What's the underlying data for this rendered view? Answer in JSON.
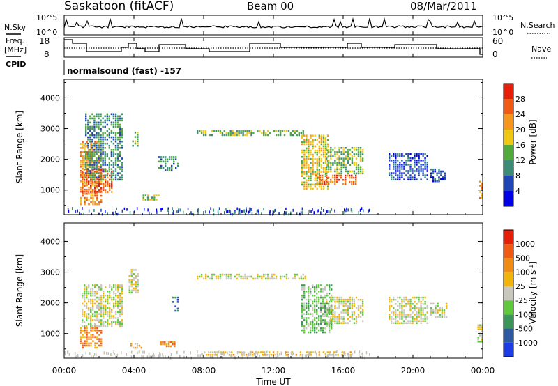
{
  "header": {
    "station": "Saskatoon (fitACF)",
    "beam": "Beam 00",
    "date": "08/Mar/2011"
  },
  "time_axis": {
    "ticks": [
      "00:00",
      "04:00",
      "08:00",
      "12:00",
      "16:00",
      "20:00",
      "00:00"
    ],
    "label": "Time UT",
    "range_hours": [
      0,
      24
    ]
  },
  "top_panels": {
    "nsky_label": "N.Sky",
    "nsky_ticks": [
      "10^5",
      "10^0"
    ],
    "nsearch_label": "N.Search",
    "nsearch_ticks": [
      "10^5",
      "10^0"
    ],
    "freq_label": "Freq.",
    "freq_unit": "[MHz]",
    "freq_ticks": [
      "18",
      "8"
    ],
    "nave_label": "Nave",
    "nave_ticks": [
      "60",
      "0"
    ],
    "cpid_label": "CPID",
    "cpid_text": "normalsound (fast) -157"
  },
  "colors": {
    "power_scale": [
      "#0000e6",
      "#1e46b4",
      "#3c8c78",
      "#50aa3c",
      "#f0c814",
      "#f5961e",
      "#f05a14",
      "#e61e0a"
    ],
    "velocity_scale": [
      "#1c3ce6",
      "#2d5aa0",
      "#3c965a",
      "#5fc83c",
      "#c8c8be",
      "#f0b40a",
      "#f08c14",
      "#f05a14",
      "#e61e0a"
    ],
    "ground_scatter": "#bebeb4"
  },
  "chart_data": [
    {
      "type": "heatmap",
      "name": "power",
      "ylabel": "Slant Range [km]",
      "yticks": [
        "4000",
        "3000",
        "2000",
        "1000"
      ],
      "ylim": [
        200,
        4600
      ],
      "xlim_hours": [
        0,
        24
      ],
      "colorbar_label": "Power [dB]",
      "colorbar_ticks": [
        "28",
        "24",
        "20",
        "16",
        "12",
        "8",
        "4"
      ],
      "colorbar_range": [
        0,
        32
      ],
      "regions": [
        {
          "t": [
            0.9,
            2.2
          ],
          "r": [
            500,
            2600
          ],
          "level": 5
        },
        {
          "t": [
            1.0,
            2.8
          ],
          "r": [
            900,
            1700
          ],
          "level": 6
        },
        {
          "t": [
            1.2,
            3.4
          ],
          "r": [
            1300,
            3500
          ],
          "level": 2
        },
        {
          "t": [
            3.9,
            4.3
          ],
          "r": [
            2400,
            2900
          ],
          "level": 3
        },
        {
          "t": [
            4.5,
            5.5
          ],
          "r": [
            650,
            850
          ],
          "level": 3
        },
        {
          "t": [
            5.4,
            6.6
          ],
          "r": [
            1600,
            2100
          ],
          "level": 2
        },
        {
          "t": [
            7.6,
            13.9
          ],
          "r": [
            2750,
            2950
          ],
          "level": 3
        },
        {
          "t": [
            13.6,
            15.2
          ],
          "r": [
            1000,
            2800
          ],
          "level": 4
        },
        {
          "t": [
            14.4,
            16.8
          ],
          "r": [
            1150,
            1500
          ],
          "level": 6
        },
        {
          "t": [
            15.0,
            17.2
          ],
          "r": [
            1500,
            2400
          ],
          "level": 3
        },
        {
          "t": [
            18.6,
            20.9
          ],
          "r": [
            1300,
            2200
          ],
          "level": 1
        },
        {
          "t": [
            21.0,
            21.9
          ],
          "r": [
            1250,
            1700
          ],
          "level": 1
        },
        {
          "t": [
            23.8,
            24.0
          ],
          "r": [
            700,
            1300
          ],
          "level": 5
        }
      ]
    },
    {
      "type": "heatmap",
      "name": "velocity",
      "ylabel": "Slant Range [km]",
      "yticks": [
        "4000",
        "3000",
        "2000",
        "1000"
      ],
      "ylim": [
        200,
        4600
      ],
      "xlim_hours": [
        0,
        24
      ],
      "colorbar_label": "Velocity [m s^-1]",
      "colorbar_ticks": [
        "1000",
        "500",
        "100",
        "25",
        "-25",
        "-100",
        "-500",
        "-1000"
      ],
      "colorbar_range": [
        -1500,
        1500
      ],
      "regions": [
        {
          "t": [
            0.9,
            2.2
          ],
          "r": [
            500,
            1200
          ],
          "level": 6
        },
        {
          "t": [
            1.0,
            3.4
          ],
          "r": [
            1200,
            2600
          ],
          "level": 4
        },
        {
          "t": [
            3.7,
            4.3
          ],
          "r": [
            2300,
            3100
          ],
          "level": 4
        },
        {
          "t": [
            3.8,
            4.5
          ],
          "r": [
            500,
            700
          ],
          "level": 5
        },
        {
          "t": [
            5.5,
            6.4
          ],
          "r": [
            550,
            750
          ],
          "level": 6
        },
        {
          "t": [
            6.2,
            6.6
          ],
          "r": [
            1700,
            2200
          ],
          "level": 1
        },
        {
          "t": [
            7.6,
            13.9
          ],
          "r": [
            2750,
            2950
          ],
          "level": 4
        },
        {
          "t": [
            13.6,
            15.4
          ],
          "r": [
            1000,
            2600
          ],
          "level": 3
        },
        {
          "t": [
            15.0,
            17.2
          ],
          "r": [
            1300,
            2200
          ],
          "level": 4
        },
        {
          "t": [
            8.0,
            16.5
          ],
          "r": [
            250,
            420
          ],
          "level": 5
        },
        {
          "t": [
            18.6,
            20.9
          ],
          "r": [
            1300,
            2200
          ],
          "level": 4
        },
        {
          "t": [
            21.0,
            22.0
          ],
          "r": [
            1500,
            2000
          ],
          "level": 4
        },
        {
          "t": [
            23.7,
            24.0
          ],
          "r": [
            700,
            1300
          ],
          "level": 4
        }
      ]
    }
  ]
}
